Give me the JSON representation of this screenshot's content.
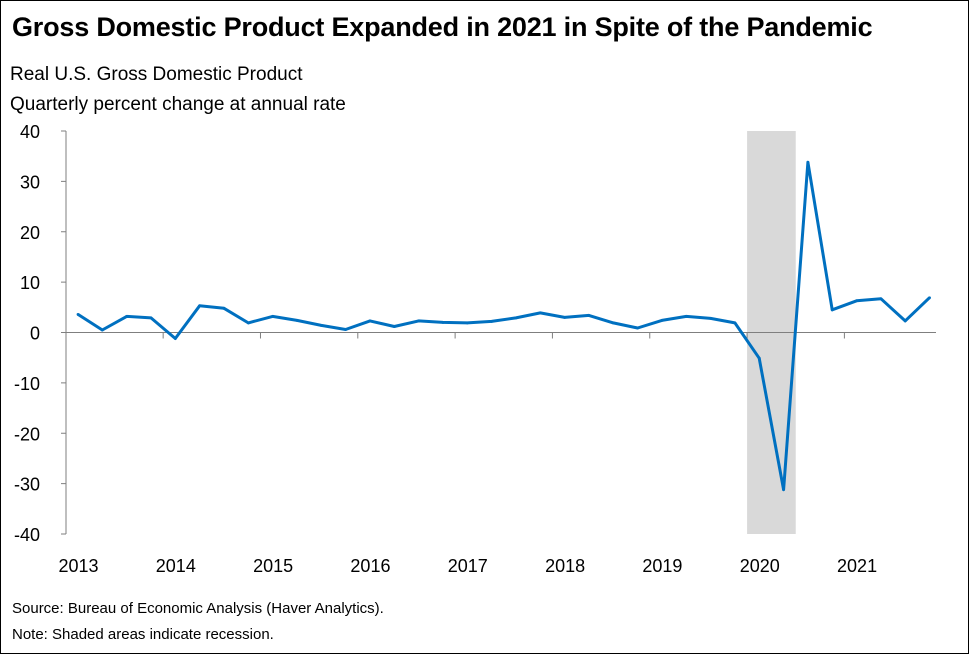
{
  "title": "Gross Domestic Product Expanded in 2021 in Spite of the Pandemic",
  "subtitle_line1": "Real U.S. Gross Domestic Product",
  "subtitle_line2": "Quarterly percent change at annual rate",
  "source": "Source: Bureau of Economic Analysis (Haver Analytics).",
  "note": "Note: Shaded areas indicate recession.",
  "colors": {
    "line": "#0070c0",
    "recession": "#d9d9d9",
    "axis": "#7f7f7f"
  },
  "chart_data": {
    "type": "line",
    "title": "Gross Domestic Product Expanded in 2021 in Spite of the Pandemic",
    "ylabel": "Quarterly percent change at annual rate",
    "xlabel": "",
    "ylim": [
      -40,
      40
    ],
    "yticks": [
      40,
      30,
      20,
      10,
      0,
      -10,
      -20,
      -30,
      -40
    ],
    "x_tick_labels": [
      "2013",
      "2014",
      "2015",
      "2016",
      "2017",
      "2018",
      "2019",
      "2020",
      "2021"
    ],
    "grid": false,
    "recession_shading": {
      "start": "2020-Q1",
      "end": "2020-Q2"
    },
    "series": [
      {
        "x": [
          "2013-Q1",
          "2013-Q2",
          "2013-Q3",
          "2013-Q4",
          "2014-Q1",
          "2014-Q2",
          "2014-Q3",
          "2014-Q4",
          "2015-Q1",
          "2015-Q2",
          "2015-Q3",
          "2015-Q4",
          "2016-Q1",
          "2016-Q2",
          "2016-Q3",
          "2016-Q4",
          "2017-Q1",
          "2017-Q2",
          "2017-Q3",
          "2017-Q4",
          "2018-Q1",
          "2018-Q2",
          "2018-Q3",
          "2018-Q4",
          "2019-Q1",
          "2019-Q2",
          "2019-Q3",
          "2019-Q4",
          "2020-Q1",
          "2020-Q2",
          "2020-Q3",
          "2020-Q4",
          "2021-Q1",
          "2021-Q2",
          "2021-Q3",
          "2021-Q4"
        ],
        "values": [
          3.6,
          0.5,
          3.2,
          2.9,
          -1.2,
          5.3,
          4.8,
          1.9,
          3.2,
          2.4,
          1.4,
          0.6,
          2.3,
          1.2,
          2.3,
          2.0,
          1.9,
          2.2,
          2.9,
          3.9,
          3.0,
          3.4,
          1.9,
          0.9,
          2.4,
          3.2,
          2.8,
          1.9,
          -5.1,
          -31.2,
          33.8,
          4.5,
          6.3,
          6.7,
          2.3,
          6.9
        ]
      }
    ]
  }
}
